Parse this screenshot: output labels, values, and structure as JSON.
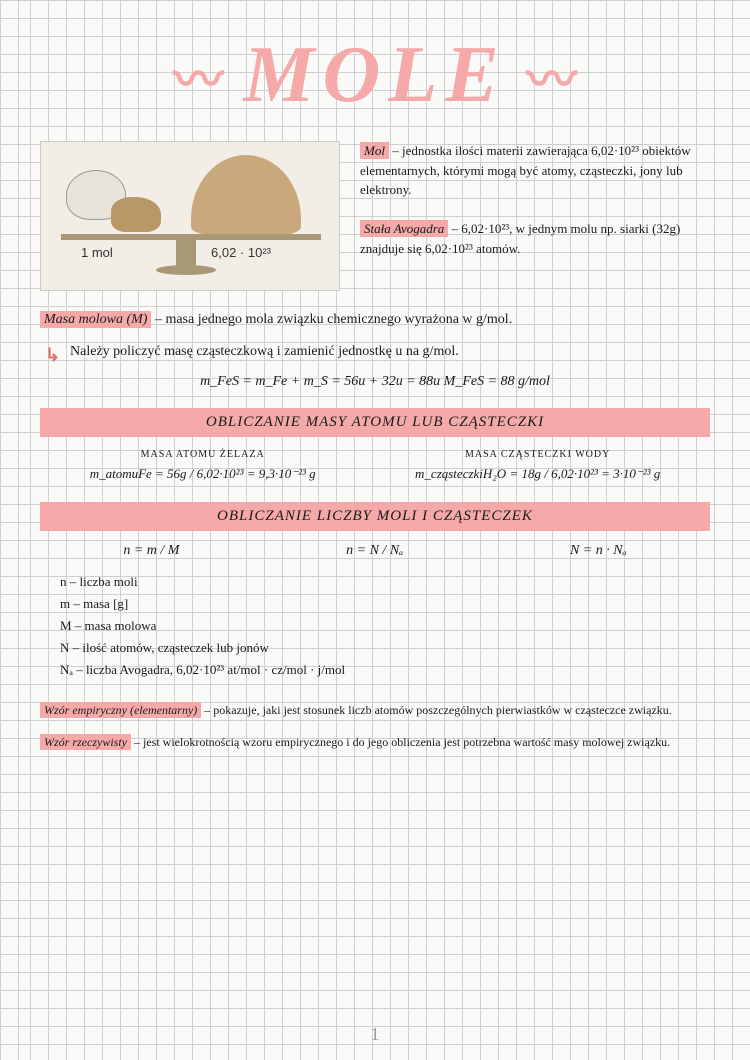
{
  "colors": {
    "highlight": "#f5a9a9",
    "ink": "#1a1a1a",
    "grid": "#d0d0d0",
    "paper": "#fafaf8",
    "illustration_bg": "#f2eee6",
    "sand": "#c9a87c",
    "wood": "#a89878"
  },
  "title": "MOLE",
  "illustration": {
    "left_label": "1 mol",
    "right_label": "6,02 · 10²³"
  },
  "def_mol": {
    "term": "Mol",
    "text": " – jednostka ilości materii zawierająca 6,02·10²³ obiektów elementarnych, którymi mogą być atomy, cząsteczki, jony lub elektrony."
  },
  "def_avogadro": {
    "term": "Stała Avogadra",
    "text": " – 6,02·10²³, w jednym molu np. siarki (32g) znajduje się 6,02·10²³ atomów."
  },
  "def_masa_molowa": {
    "term": "Masa molowa (M)",
    "text": " – masa jednego mola związku chemicznego wyrażona w g/mol."
  },
  "masa_note": "Należy policzyć masę cząsteczkową i zamienić jednostkę u na g/mol.",
  "masa_formula": "m_FeS = m_Fe + m_S = 56u + 32u = 88u      M_FeS = 88 g/mol",
  "section1": "OBLICZANIE MASY ATOMU LUB CZĄSTECZKI",
  "atom_calc": {
    "left_head": "MASA ATOMU ŻELAZA",
    "left_formula": "m_atomuFe = 56g / 6,02·10²³ = 9,3·10⁻²³ g",
    "right_head": "MASA CZĄSTECZKI WODY",
    "right_formula": "m_cząsteczkiH₂O = 18g / 6,02·10²³ = 3·10⁻²³ g"
  },
  "section2": "OBLICZANIE LICZBY MOLI I CZĄSTECZEK",
  "mole_formulas": {
    "f1": "n = m / M",
    "f2": "n = N / Nₐ",
    "f3": "N = n · Nₐ"
  },
  "legend": {
    "n": "n – liczba moli",
    "m": "m – masa  [g]",
    "M": "M – masa molowa",
    "N": "N – ilość atomów, cząsteczek lub jonów",
    "Na": "Nₐ – liczba Avogadra, 6,02·10²³ at/mol · cz/mol · j/mol"
  },
  "def_empiryczny": {
    "term": "Wzór empiryczny (elementarny)",
    "text": " – pokazuje, jaki jest stosunek liczb atomów poszczególnych pierwiastków w cząsteczce związku."
  },
  "def_rzeczywisty": {
    "term": "Wzór rzeczywisty",
    "text": " – jest wielokrotnością wzoru empirycznego i do jego obliczenia jest potrzebna wartość masy molowej związku."
  },
  "page_number": "1"
}
